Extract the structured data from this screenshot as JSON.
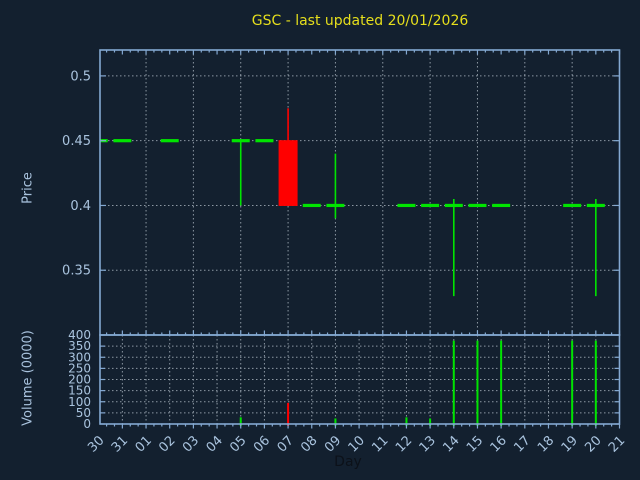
{
  "title": "GSC - last updated 20/01/2026",
  "colors": {
    "background": "#13202f",
    "border": "#84a9d2",
    "tick_text": "#a9c3de",
    "grid": "#9aa5b0",
    "title": "#e6df1c",
    "up": "#00e400",
    "down": "#ff0000",
    "xlabel_text": "#0c1119"
  },
  "chart_data": {
    "type": "candlestick",
    "title": "GSC - last updated 20/01/2026",
    "xlabel": "Day",
    "x_categories": [
      "30",
      "31",
      "01",
      "02",
      "03",
      "04",
      "05",
      "06",
      "07",
      "08",
      "09",
      "10",
      "11",
      "12",
      "13",
      "14",
      "15",
      "16",
      "17",
      "18",
      "19",
      "20",
      "21"
    ],
    "grid": "dotted",
    "price_panel": {
      "ylabel": "Price",
      "yrange": [
        0.3,
        0.52
      ],
      "yticks": [
        0.35,
        0.4,
        0.45,
        0.5
      ],
      "ytick_labels": [
        "0.35",
        "0.4",
        "0.45",
        "0.5"
      ],
      "candles": [
        {
          "day": "30",
          "open": 0.45,
          "high": 0.45,
          "low": 0.45,
          "close": 0.45,
          "dir": "up"
        },
        {
          "day": "31",
          "open": 0.45,
          "high": 0.45,
          "low": 0.45,
          "close": 0.45,
          "dir": "up"
        },
        {
          "day": "02",
          "open": 0.45,
          "high": 0.45,
          "low": 0.45,
          "close": 0.45,
          "dir": "up"
        },
        {
          "day": "05",
          "open": 0.45,
          "high": 0.45,
          "low": 0.4,
          "close": 0.45,
          "dir": "up"
        },
        {
          "day": "06",
          "open": 0.45,
          "high": 0.45,
          "low": 0.45,
          "close": 0.45,
          "dir": "up"
        },
        {
          "day": "07",
          "open": 0.45,
          "high": 0.475,
          "low": 0.4,
          "close": 0.4,
          "dir": "down"
        },
        {
          "day": "08",
          "open": 0.4,
          "high": 0.4,
          "low": 0.4,
          "close": 0.4,
          "dir": "up"
        },
        {
          "day": "09",
          "open": 0.4,
          "high": 0.44,
          "low": 0.39,
          "close": 0.4,
          "dir": "up"
        },
        {
          "day": "12",
          "open": 0.4,
          "high": 0.4,
          "low": 0.4,
          "close": 0.4,
          "dir": "up"
        },
        {
          "day": "13",
          "open": 0.4,
          "high": 0.4,
          "low": 0.4,
          "close": 0.4,
          "dir": "up"
        },
        {
          "day": "14",
          "open": 0.4,
          "high": 0.405,
          "low": 0.33,
          "close": 0.4,
          "dir": "up"
        },
        {
          "day": "15",
          "open": 0.4,
          "high": 0.4,
          "low": 0.4,
          "close": 0.4,
          "dir": "up"
        },
        {
          "day": "16",
          "open": 0.4,
          "high": 0.4,
          "low": 0.4,
          "close": 0.4,
          "dir": "up"
        },
        {
          "day": "19",
          "open": 0.4,
          "high": 0.4,
          "low": 0.4,
          "close": 0.4,
          "dir": "up"
        },
        {
          "day": "20",
          "open": 0.4,
          "high": 0.405,
          "low": 0.33,
          "close": 0.4,
          "dir": "up"
        }
      ]
    },
    "volume_panel": {
      "ylabel": "Volume (0000)",
      "yrange": [
        0,
        400
      ],
      "yticks": [
        0,
        50,
        100,
        150,
        200,
        250,
        300,
        350,
        400
      ],
      "bars": [
        {
          "day": "05",
          "value": 30,
          "dir": "up"
        },
        {
          "day": "07",
          "value": 95,
          "dir": "down"
        },
        {
          "day": "09",
          "value": 25,
          "dir": "up"
        },
        {
          "day": "12",
          "value": 30,
          "dir": "up"
        },
        {
          "day": "13",
          "value": 25,
          "dir": "up"
        },
        {
          "day": "14",
          "value": 375,
          "dir": "up"
        },
        {
          "day": "15",
          "value": 375,
          "dir": "up"
        },
        {
          "day": "16",
          "value": 375,
          "dir": "up"
        },
        {
          "day": "19",
          "value": 375,
          "dir": "up"
        },
        {
          "day": "20",
          "value": 375,
          "dir": "up"
        }
      ]
    }
  }
}
